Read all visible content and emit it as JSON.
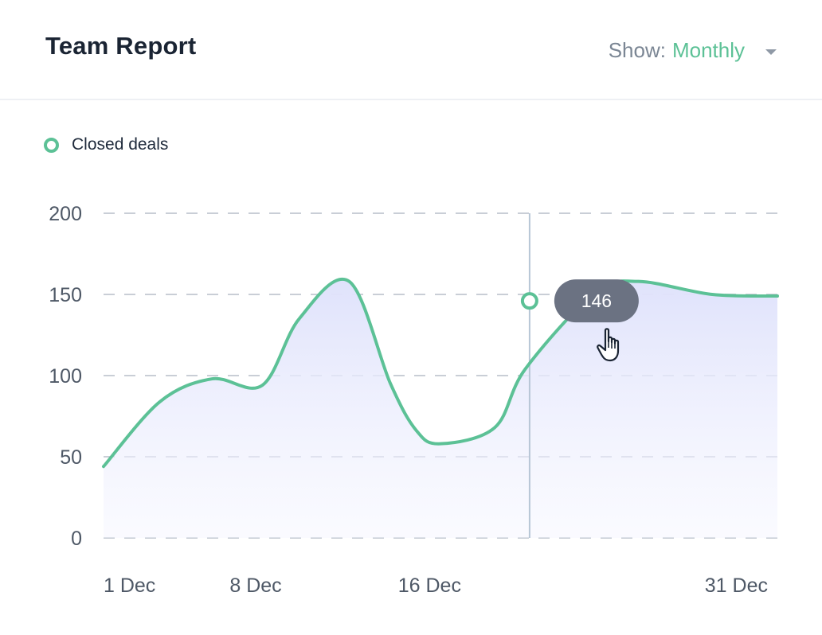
{
  "header": {
    "title": "Team Report",
    "show_label": "Show:",
    "show_value": "Monthly"
  },
  "legend": {
    "label": "Closed deals"
  },
  "tooltip": {
    "value": "146"
  },
  "colors": {
    "accent": "#5cc196",
    "grid": "#c9ced6",
    "tooltip_bg": "#6b7282",
    "fill_top": "#dfe2fb"
  },
  "chart_data": {
    "type": "area",
    "y_ticks": [
      "200",
      "150",
      "100",
      "50",
      "0"
    ],
    "x_tick_labels": [
      {
        "label": "1 Dec",
        "x": 0
      },
      {
        "label": "8 Dec",
        "x": 7
      },
      {
        "label": "16 Dec",
        "x": 15
      },
      {
        "label": "31 Dec",
        "x": 30
      }
    ],
    "ylim": [
      0,
      200
    ],
    "xlim": [
      0,
      31
    ],
    "grid": true,
    "series": [
      {
        "name": "Closed deals",
        "x": [
          0,
          2.6,
          5.0,
          7.3,
          9.0,
          11.3,
          13.2,
          14.4,
          15.5,
          18.0,
          19.4,
          22.6,
          24.6,
          28.0,
          31.0
        ],
        "values": [
          44,
          84,
          98,
          94,
          135,
          158,
          95,
          66,
          58,
          68,
          104,
          151,
          158,
          150,
          149
        ]
      }
    ],
    "highlight": {
      "x": 19.6,
      "value": 146
    }
  }
}
